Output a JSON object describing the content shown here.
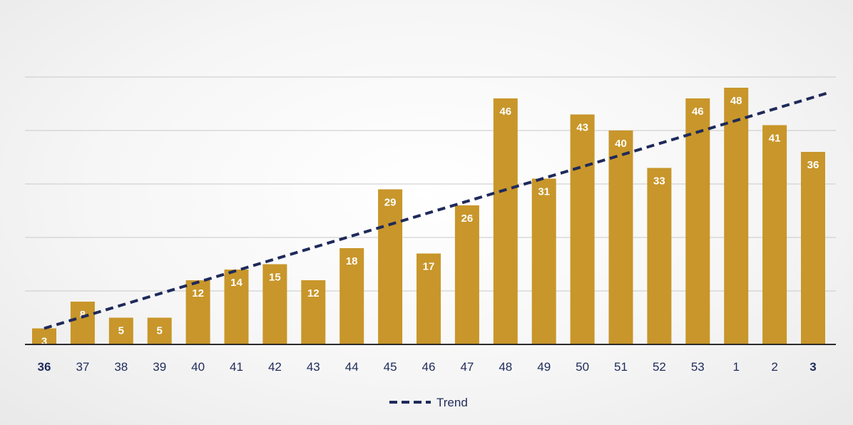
{
  "chart_data": {
    "type": "bar",
    "title": "",
    "xlabel": "",
    "ylabel": "",
    "categories": [
      "36",
      "37",
      "38",
      "39",
      "40",
      "41",
      "42",
      "43",
      "44",
      "45",
      "46",
      "47",
      "48",
      "49",
      "50",
      "51",
      "52",
      "53",
      "1",
      "2",
      "3"
    ],
    "values": [
      3,
      8,
      5,
      5,
      12,
      14,
      15,
      12,
      18,
      29,
      17,
      26,
      46,
      31,
      43,
      40,
      33,
      46,
      48,
      41,
      36
    ],
    "data_labels": [
      "3",
      "8",
      "5",
      "5",
      "12",
      "14",
      "15",
      "12",
      "18",
      "29",
      "17",
      "26",
      "46",
      "31",
      "43",
      "40",
      "33",
      "46",
      "48",
      "41",
      "36"
    ],
    "bold_ticks": [
      "36",
      "3"
    ],
    "ylim": [
      0,
      50
    ],
    "y_gridlines": [
      10,
      20,
      30,
      40,
      50
    ],
    "grid": true,
    "trend": {
      "name": "Trend",
      "start": 3,
      "end": 47
    },
    "legend": {
      "placement": "bottom-center",
      "label": "Trend"
    },
    "colors": {
      "bar": "#c8962a",
      "trend": "#1f2a5a",
      "grid": "#c9c9c9",
      "axis": "#2b2b2b",
      "data_label": "#ffffff"
    }
  }
}
